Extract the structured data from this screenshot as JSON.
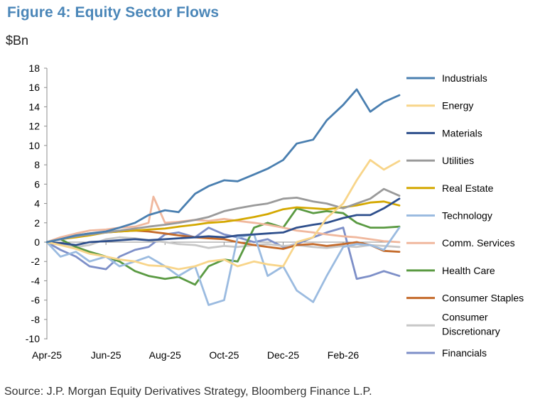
{
  "figure": {
    "title": "Figure 4: Equity Sector Flows",
    "unit": "$Bn",
    "source": "Source: J.P. Morgan Equity Derivatives Strategy, Bloomberg Finance L.P."
  },
  "chart_data": {
    "type": "line",
    "title": "Figure 4: Equity Sector Flows",
    "ylabel": "$Bn",
    "xlabel": "",
    "ylim": [
      -10,
      18
    ],
    "yticks": [
      -10,
      -8,
      -6,
      -4,
      -2,
      0,
      2,
      4,
      6,
      8,
      10,
      12,
      14,
      16,
      18
    ],
    "xlim": [
      "2025-04-01",
      "2026-03-31"
    ],
    "xtick_labels": [
      "Apr-25",
      "Jun-25",
      "Aug-25",
      "Oct-25",
      "Dec-25",
      "Feb-26"
    ],
    "xtick_dates": [
      "2025-04-01",
      "2025-06-01",
      "2025-08-01",
      "2025-10-01",
      "2025-12-01",
      "2026-02-01"
    ],
    "legend_position": "right",
    "grid": false,
    "series": [
      {
        "name": "Industrials",
        "color": "#4a7fb0",
        "x": [
          "2025-04-01",
          "2025-04-15",
          "2025-05-01",
          "2025-05-15",
          "2025-06-01",
          "2025-06-15",
          "2025-07-01",
          "2025-07-15",
          "2025-08-01",
          "2025-08-15",
          "2025-09-01",
          "2025-09-15",
          "2025-10-01",
          "2025-10-15",
          "2025-11-01",
          "2025-11-15",
          "2025-12-01",
          "2025-12-15",
          "2026-01-01",
          "2026-01-15",
          "2026-02-01",
          "2026-02-15",
          "2026-03-01",
          "2026-03-15",
          "2026-03-31"
        ],
        "y": [
          0,
          0.3,
          0.7,
          0.9,
          1.1,
          1.5,
          2.0,
          2.8,
          3.3,
          3.1,
          5.0,
          5.8,
          6.4,
          6.3,
          7.0,
          7.6,
          8.5,
          10.2,
          10.6,
          12.6,
          14.2,
          15.8,
          13.5,
          14.5,
          15.2
        ]
      },
      {
        "name": "Energy",
        "color": "#f8d58a",
        "x": [
          "2025-04-01",
          "2025-04-15",
          "2025-05-01",
          "2025-05-15",
          "2025-06-01",
          "2025-06-15",
          "2025-07-01",
          "2025-07-15",
          "2025-08-01",
          "2025-08-15",
          "2025-09-01",
          "2025-09-15",
          "2025-10-01",
          "2025-10-15",
          "2025-11-01",
          "2025-11-15",
          "2025-12-01",
          "2025-12-15",
          "2026-01-01",
          "2026-01-15",
          "2026-02-01",
          "2026-02-15",
          "2026-03-01",
          "2026-03-15",
          "2026-03-31"
        ],
        "y": [
          0,
          -0.3,
          -0.7,
          -1.2,
          -1.5,
          -1.8,
          -2.0,
          -2.4,
          -2.5,
          -2.8,
          -2.5,
          -2.0,
          -1.8,
          -2.5,
          -2.0,
          -2.3,
          -2.5,
          0.0,
          0.5,
          2.5,
          4.0,
          6.4,
          8.5,
          7.5,
          8.4
        ]
      },
      {
        "name": "Materials",
        "color": "#2e4f8c",
        "x": [
          "2025-04-01",
          "2025-04-15",
          "2025-05-01",
          "2025-05-15",
          "2025-06-01",
          "2025-06-15",
          "2025-07-01",
          "2025-07-15",
          "2025-08-01",
          "2025-08-15",
          "2025-09-01",
          "2025-09-15",
          "2025-10-01",
          "2025-10-15",
          "2025-11-01",
          "2025-11-15",
          "2025-12-01",
          "2025-12-15",
          "2026-01-01",
          "2026-01-15",
          "2026-02-01",
          "2026-02-15",
          "2026-03-01",
          "2026-03-15",
          "2026-03-31"
        ],
        "y": [
          0,
          -0.1,
          -0.3,
          0.0,
          0.1,
          0.2,
          0.3,
          0.2,
          0.3,
          0.4,
          0.5,
          0.6,
          0.5,
          0.7,
          0.8,
          0.9,
          1.0,
          1.5,
          1.8,
          2.0,
          2.5,
          2.8,
          2.8,
          3.5,
          4.5
        ]
      },
      {
        "name": "Utilities",
        "color": "#9a9a9a",
        "x": [
          "2025-04-01",
          "2025-04-15",
          "2025-05-01",
          "2025-05-15",
          "2025-06-01",
          "2025-06-15",
          "2025-07-01",
          "2025-07-15",
          "2025-08-01",
          "2025-08-15",
          "2025-09-01",
          "2025-09-15",
          "2025-10-01",
          "2025-10-15",
          "2025-11-01",
          "2025-11-15",
          "2025-12-01",
          "2025-12-15",
          "2026-01-01",
          "2026-01-15",
          "2026-02-01",
          "2026-02-15",
          "2026-03-01",
          "2026-03-15",
          "2026-03-31"
        ],
        "y": [
          0,
          0.3,
          0.6,
          0.8,
          1.0,
          1.2,
          1.4,
          1.6,
          1.8,
          2.0,
          2.3,
          2.6,
          3.2,
          3.5,
          3.8,
          4.0,
          4.5,
          4.6,
          4.2,
          4.0,
          3.5,
          4.0,
          4.5,
          5.5,
          4.8
        ]
      },
      {
        "name": "Real Estate",
        "color": "#d4a800",
        "x": [
          "2025-04-01",
          "2025-04-15",
          "2025-05-01",
          "2025-05-15",
          "2025-06-01",
          "2025-06-15",
          "2025-07-01",
          "2025-07-15",
          "2025-08-01",
          "2025-08-15",
          "2025-09-01",
          "2025-09-15",
          "2025-10-01",
          "2025-10-15",
          "2025-11-01",
          "2025-11-15",
          "2025-12-01",
          "2025-12-15",
          "2026-01-01",
          "2026-01-15",
          "2026-02-01",
          "2026-02-15",
          "2026-03-01",
          "2026-03-15",
          "2026-03-31"
        ],
        "y": [
          0,
          0.3,
          0.5,
          0.7,
          1.0,
          1.1,
          1.2,
          1.3,
          1.4,
          1.6,
          1.8,
          2.0,
          2.1,
          2.3,
          2.6,
          2.9,
          3.4,
          3.6,
          3.5,
          3.4,
          3.6,
          3.8,
          4.1,
          4.2,
          3.8
        ]
      },
      {
        "name": "Technology",
        "color": "#9bbbe0",
        "x": [
          "2025-04-01",
          "2025-04-15",
          "2025-05-01",
          "2025-05-15",
          "2025-06-01",
          "2025-06-15",
          "2025-07-01",
          "2025-07-15",
          "2025-08-01",
          "2025-08-15",
          "2025-09-01",
          "2025-09-15",
          "2025-10-01",
          "2025-10-15",
          "2025-11-01",
          "2025-11-15",
          "2025-12-01",
          "2025-12-15",
          "2026-01-01",
          "2026-01-15",
          "2026-02-01",
          "2026-02-15",
          "2026-03-01",
          "2026-03-15",
          "2026-03-31"
        ],
        "y": [
          0,
          -1.5,
          -1.0,
          -2.0,
          -1.5,
          -2.5,
          -2.0,
          -1.5,
          -2.5,
          -3.5,
          -2.5,
          -6.5,
          -6.0,
          0.5,
          0.8,
          -3.5,
          -2.5,
          -5.0,
          -6.2,
          -3.5,
          -0.5,
          -0.2,
          -0.3,
          -0.8,
          1.5
        ]
      },
      {
        "name": "Comm. Services",
        "color": "#f0b89e",
        "x": [
          "2025-04-01",
          "2025-04-15",
          "2025-05-01",
          "2025-05-15",
          "2025-06-01",
          "2025-06-15",
          "2025-07-01",
          "2025-07-15",
          "2025-07-20",
          "2025-08-01",
          "2025-08-15",
          "2025-09-01",
          "2025-09-15",
          "2025-10-01",
          "2025-10-15",
          "2025-11-01",
          "2025-11-15",
          "2025-12-01",
          "2025-12-15",
          "2026-01-01",
          "2026-01-15",
          "2026-02-01",
          "2026-02-15",
          "2026-03-01",
          "2026-03-15",
          "2026-03-31"
        ],
        "y": [
          0,
          0.5,
          0.9,
          1.2,
          1.3,
          1.5,
          1.6,
          2.0,
          4.7,
          2.0,
          2.1,
          2.3,
          2.2,
          2.4,
          2.2,
          2.0,
          1.8,
          1.5,
          1.2,
          1.0,
          0.8,
          0.6,
          0.5,
          0.3,
          0.1,
          0.0
        ]
      },
      {
        "name": "Health Care",
        "color": "#5a9a42",
        "x": [
          "2025-04-01",
          "2025-04-15",
          "2025-05-01",
          "2025-05-15",
          "2025-06-01",
          "2025-06-15",
          "2025-07-01",
          "2025-07-15",
          "2025-08-01",
          "2025-08-15",
          "2025-09-01",
          "2025-09-15",
          "2025-10-01",
          "2025-10-15",
          "2025-11-01",
          "2025-11-15",
          "2025-12-01",
          "2025-12-15",
          "2026-01-01",
          "2026-01-15",
          "2026-02-01",
          "2026-02-15",
          "2026-03-01",
          "2026-03-15",
          "2026-03-31"
        ],
        "y": [
          0,
          0.3,
          -0.5,
          -1.0,
          -1.5,
          -2.0,
          -3.0,
          -3.5,
          -3.8,
          -3.6,
          -4.4,
          -2.5,
          -1.8,
          -2.0,
          1.5,
          2.0,
          1.5,
          3.5,
          3.0,
          3.2,
          3.0,
          2.0,
          1.5,
          1.5,
          1.6
        ]
      },
      {
        "name": "Consumer Staples",
        "color": "#c46a2a",
        "x": [
          "2025-04-01",
          "2025-04-15",
          "2025-05-01",
          "2025-05-15",
          "2025-06-01",
          "2025-06-15",
          "2025-07-01",
          "2025-07-15",
          "2025-08-01",
          "2025-08-15",
          "2025-09-01",
          "2025-09-15",
          "2025-10-01",
          "2025-10-15",
          "2025-11-01",
          "2025-11-15",
          "2025-12-01",
          "2025-12-15",
          "2026-01-01",
          "2026-01-15",
          "2026-02-01",
          "2026-02-15",
          "2026-03-01",
          "2026-03-15",
          "2026-03-31"
        ],
        "y": [
          0,
          0.4,
          0.7,
          0.9,
          1.0,
          1.1,
          1.2,
          1.1,
          0.9,
          0.7,
          0.5,
          0.4,
          0.3,
          0.0,
          -0.3,
          -0.5,
          -0.7,
          -0.3,
          -0.2,
          -0.4,
          -0.2,
          0.0,
          -0.3,
          -0.9,
          -1.0
        ]
      },
      {
        "name": "Consumer Discretionary",
        "color": "#c7c7c7",
        "x": [
          "2025-04-01",
          "2025-04-15",
          "2025-05-01",
          "2025-05-15",
          "2025-06-01",
          "2025-06-15",
          "2025-07-01",
          "2025-07-15",
          "2025-08-01",
          "2025-08-15",
          "2025-09-01",
          "2025-09-15",
          "2025-10-01",
          "2025-10-15",
          "2025-11-01",
          "2025-11-15",
          "2025-12-01",
          "2025-12-15",
          "2026-01-01",
          "2026-01-15",
          "2026-02-01",
          "2026-02-15",
          "2026-03-01",
          "2026-03-15",
          "2026-03-31"
        ],
        "y": [
          0,
          -0.2,
          -0.5,
          -0.3,
          0.3,
          0.5,
          0.4,
          0.2,
          0.0,
          -0.2,
          -0.3,
          -0.6,
          -0.4,
          -0.5,
          -0.3,
          -0.2,
          -0.4,
          -0.3,
          -0.5,
          -0.6,
          -0.4,
          -0.5,
          -0.3,
          -0.4,
          -0.5
        ]
      },
      {
        "name": "Financials",
        "color": "#7d8fc8",
        "x": [
          "2025-04-01",
          "2025-04-15",
          "2025-05-01",
          "2025-05-15",
          "2025-06-01",
          "2025-06-15",
          "2025-07-01",
          "2025-07-15",
          "2025-08-01",
          "2025-08-15",
          "2025-09-01",
          "2025-09-15",
          "2025-10-01",
          "2025-10-15",
          "2025-11-01",
          "2025-11-15",
          "2025-12-01",
          "2025-12-15",
          "2026-01-01",
          "2026-01-15",
          "2026-02-01",
          "2026-02-15",
          "2026-03-01",
          "2026-03-15",
          "2026-03-31"
        ],
        "y": [
          0,
          -0.8,
          -1.5,
          -2.5,
          -2.8,
          -1.5,
          -0.8,
          -0.5,
          0.8,
          1.0,
          0.5,
          1.5,
          0.8,
          0.5,
          0.0,
          0.3,
          -0.5,
          -0.2,
          0.5,
          1.0,
          1.5,
          -3.8,
          -3.5,
          -3.0,
          -3.5
        ]
      }
    ]
  }
}
